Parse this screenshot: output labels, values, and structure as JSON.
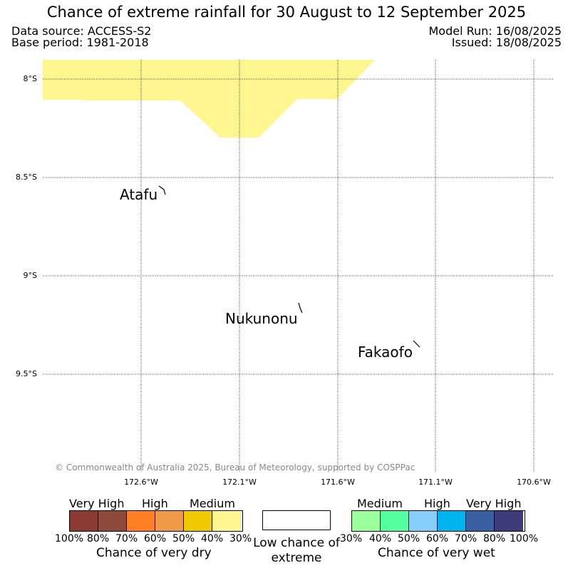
{
  "title": "Chance of extreme rainfall for 30 August to 12 September 2025",
  "header": {
    "data_source": "Data source: ACCESS-S2",
    "base_period": "Base period: 1981-2018",
    "model_run": "Model Run: 16/08/2025",
    "issued": "Issued: 18/08/2025"
  },
  "map": {
    "lat_labels": [
      "8°S",
      "8.5°S",
      "9°S",
      "9.5°S"
    ],
    "lon_labels": [
      "172.6°W",
      "172.1°W",
      "171.6°W",
      "171.1°W",
      "170.6°W"
    ],
    "places": [
      "Atafu",
      "Nukunonu",
      "Fakaofo"
    ],
    "shaded_region_category": "30%-40% chance of very dry",
    "shaded_region_color": "#fff68f",
    "copyright": "© Commonwealth of Australia 2025, Bureau of Meteorology, supported by COSPPac"
  },
  "legend": {
    "dry": {
      "categories": [
        "Very High",
        "High",
        "Medium"
      ],
      "colors": [
        "#8b3a32",
        "#8b4a3b",
        "#ff7f24",
        "#ee9a49",
        "#eec900",
        "#fff68f"
      ],
      "percents": [
        "100%",
        "80%",
        "70%",
        "60%",
        "50%",
        "40%",
        "30%"
      ],
      "caption": "Chance of very dry"
    },
    "low": {
      "caption": "Low chance of extreme"
    },
    "wet": {
      "categories": [
        "Medium",
        "High",
        "Very High"
      ],
      "colors": [
        "#9aff9a",
        "#54ff9f",
        "#87cefa",
        "#00b2ee",
        "#3a5fa0",
        "#3d3b7a"
      ],
      "percents": [
        "30%",
        "40%",
        "50%",
        "60%",
        "70%",
        "80%",
        "100%"
      ],
      "caption": "Chance of very wet"
    }
  }
}
